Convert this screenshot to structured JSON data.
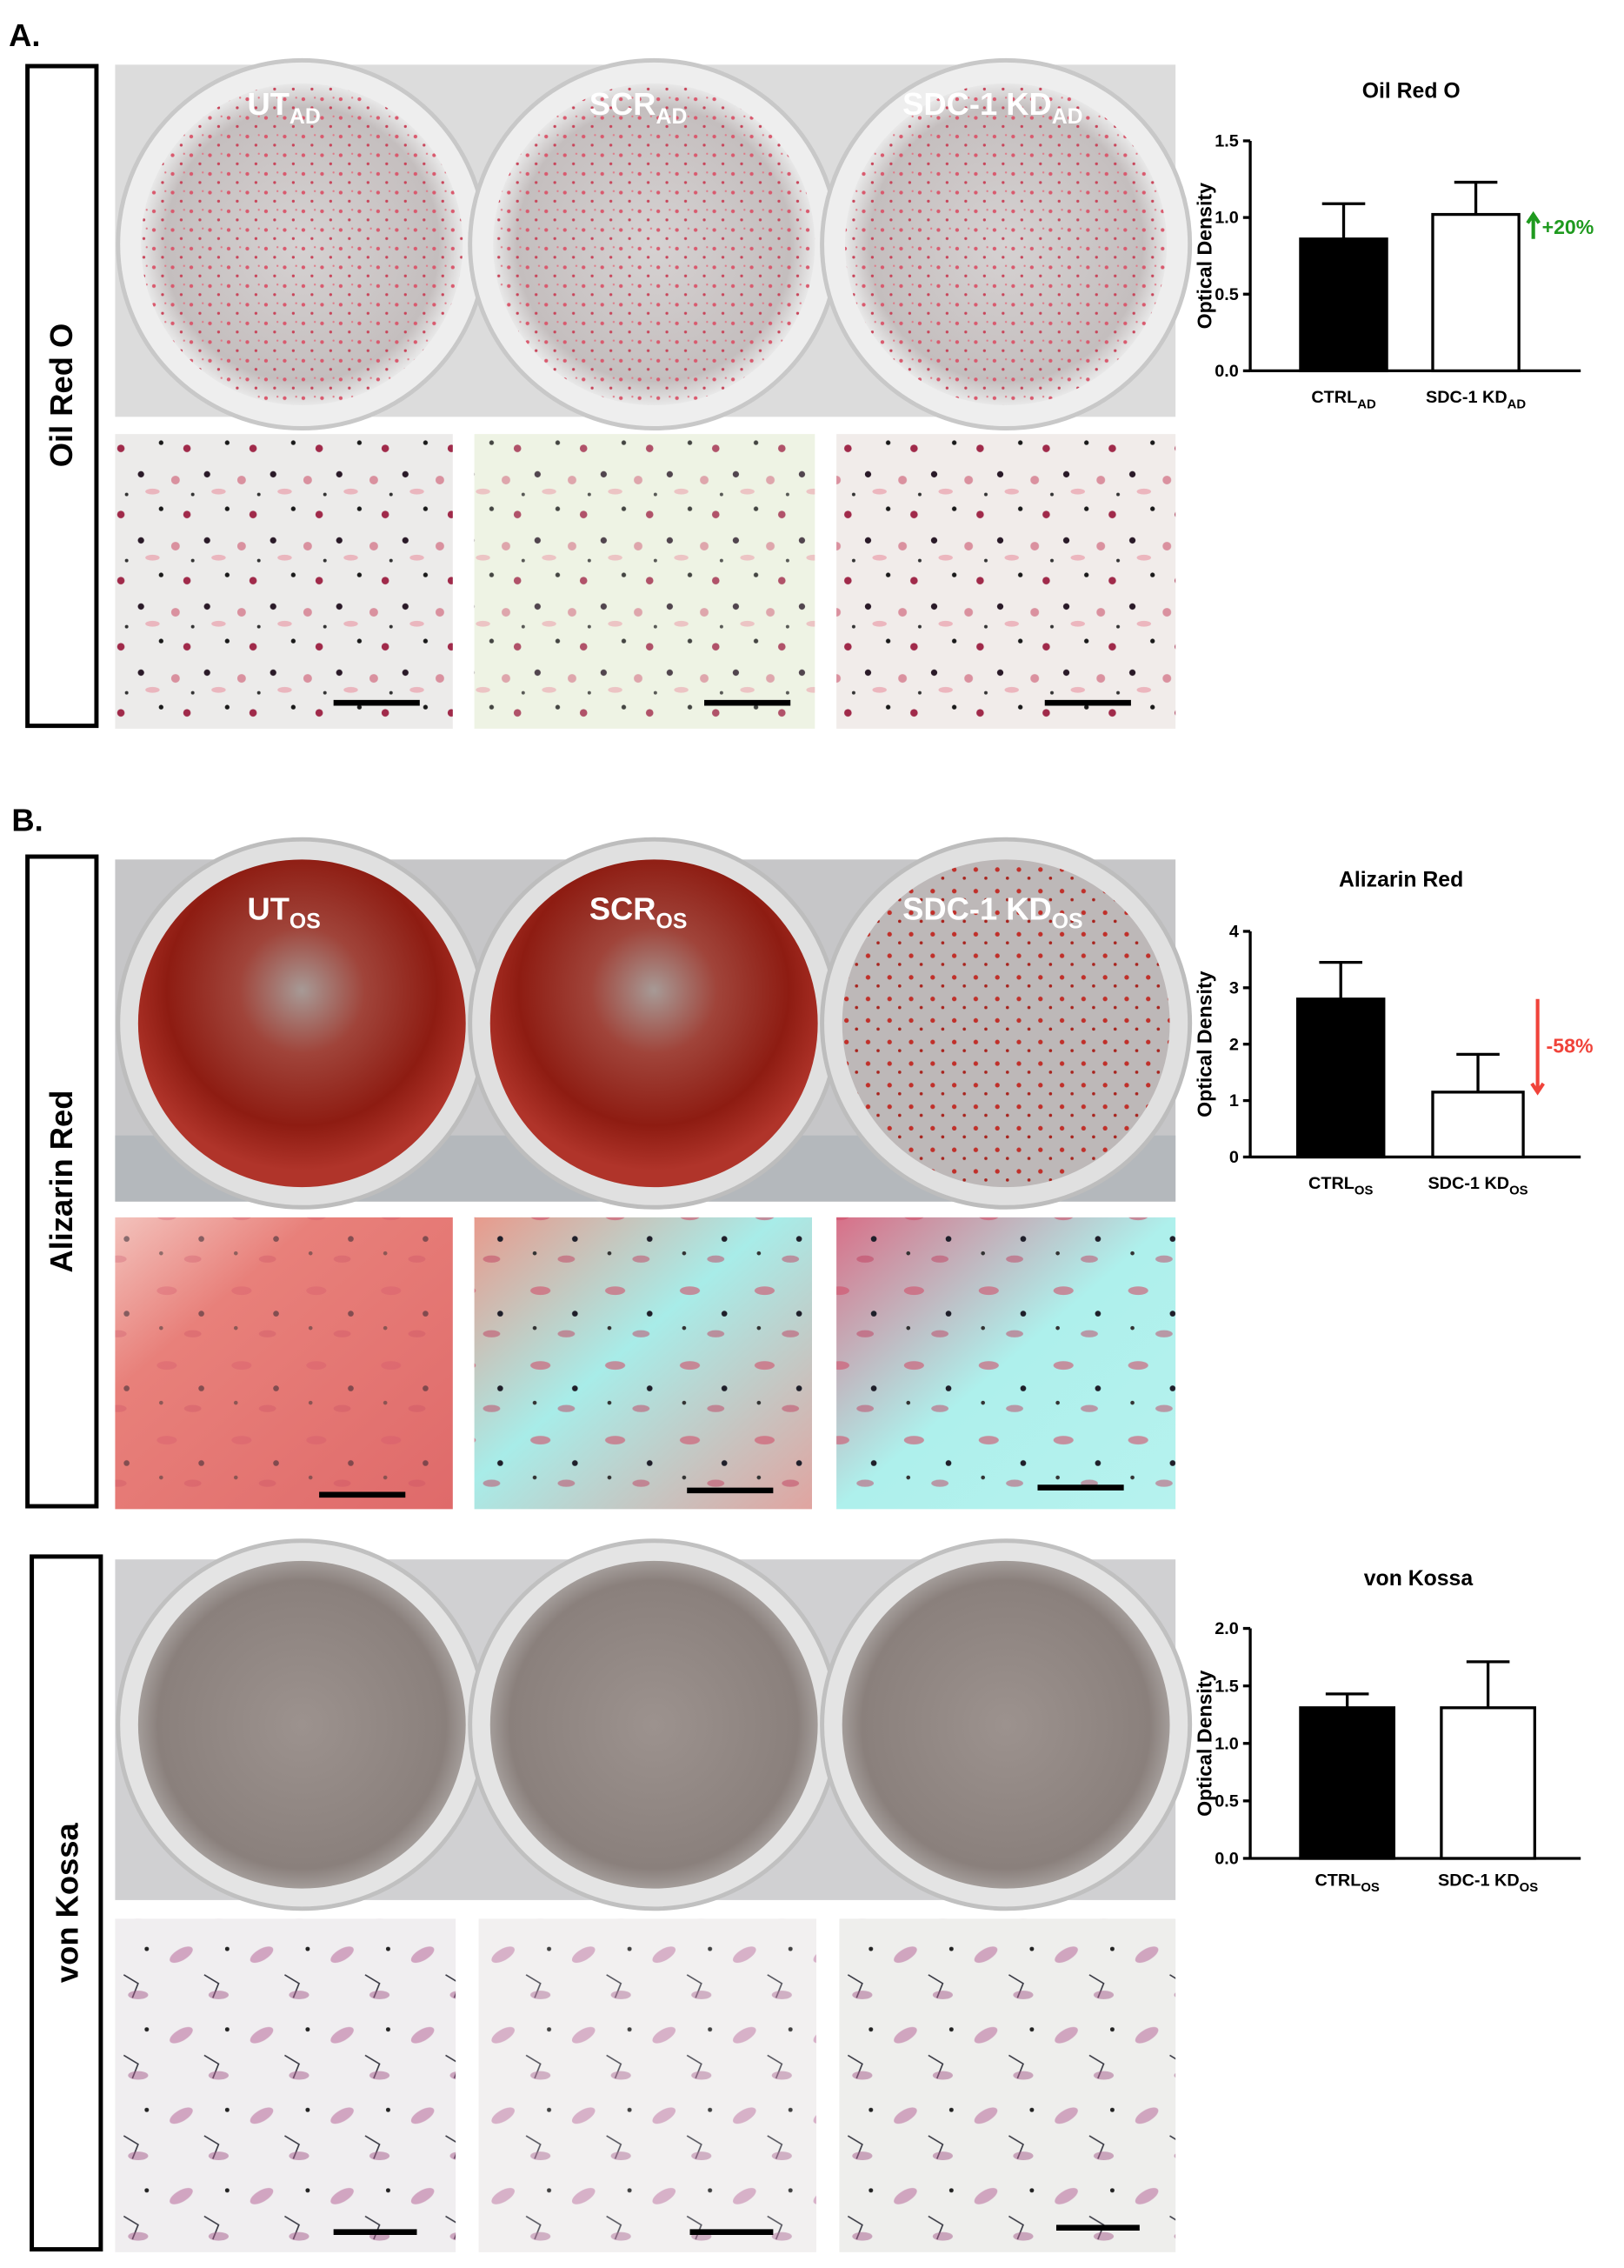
{
  "panel_labels": [
    "A.",
    "B."
  ],
  "rows": [
    {
      "stain": "Oil Red O",
      "wells": [
        {
          "main": "UT",
          "sub": "AD"
        },
        {
          "main": "SCR",
          "sub": "AD"
        },
        {
          "main": "SDC-1 KD",
          "sub": "AD"
        }
      ]
    },
    {
      "stain": "Alizarin Red",
      "wells": [
        {
          "main": "UT",
          "sub": "OS"
        },
        {
          "main": "SCR",
          "sub": "OS"
        },
        {
          "main": "SDC-1 KD",
          "sub": "OS"
        }
      ]
    },
    {
      "stain": "von Kossa"
    }
  ],
  "chart_data": [
    {
      "type": "bar",
      "title": "Oil Red O",
      "y_label": "Optical Density",
      "categories": [
        {
          "main": "CTRL",
          "sub": "AD"
        },
        {
          "main": "SDC-1 KD",
          "sub": "AD"
        }
      ],
      "values": [
        0.86,
        1.02
      ],
      "errors": [
        0.23,
        0.21
      ],
      "colors": [
        "#000000",
        "#ffffff"
      ],
      "ylim": [
        0,
        1.5
      ],
      "yticks": [
        {
          "value": 0,
          "label": "0.0"
        },
        0.5,
        {
          "value": 1,
          "label": "1.0"
        },
        1.5
      ],
      "annotation": {
        "text": "+20%",
        "color": "#1f9a1f"
      }
    },
    {
      "type": "bar",
      "title": "Alizarin Red",
      "y_label": "Optical Density",
      "categories": [
        {
          "main": "CTRL",
          "sub": "OS"
        },
        {
          "main": "SDC-1 KD",
          "sub": "OS"
        }
      ],
      "values": [
        2.8,
        1.15
      ],
      "errors": [
        0.65,
        0.67
      ],
      "colors": [
        "#000000",
        "#ffffff"
      ],
      "ylim": [
        0,
        4
      ],
      "yticks": [
        0,
        1,
        2,
        3,
        4
      ],
      "annotation": {
        "text": "-58%",
        "color": "#f0433a"
      }
    },
    {
      "type": "bar",
      "title": "von Kossa",
      "y_label": "Optical Density",
      "categories": [
        {
          "main": "CTRL",
          "sub": "OS"
        },
        {
          "main": "SDC-1 KD",
          "sub": "OS"
        }
      ],
      "values": [
        1.31,
        1.31
      ],
      "errors": [
        0.12,
        0.4
      ],
      "colors": [
        "#000000",
        "#ffffff"
      ],
      "ylim": [
        0,
        2
      ],
      "yticks": [
        {
          "value": 0,
          "label": "0.0"
        },
        0.5,
        {
          "value": 1,
          "label": "1.0"
        },
        1.5,
        {
          "value": 2,
          "label": "2.0"
        }
      ]
    }
  ]
}
